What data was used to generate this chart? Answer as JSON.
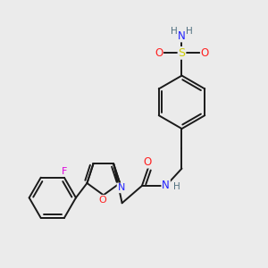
{
  "bg_color": "#ebebeb",
  "atom_colors": {
    "C": "#1a1a1a",
    "N": "#2020ff",
    "O": "#ff2020",
    "S": "#cccc00",
    "F": "#dd00dd",
    "H": "#507080"
  },
  "bond_color": "#1a1a1a",
  "bond_width": 1.4,
  "fig_width": 3.0,
  "fig_height": 3.0,
  "dpi": 100
}
